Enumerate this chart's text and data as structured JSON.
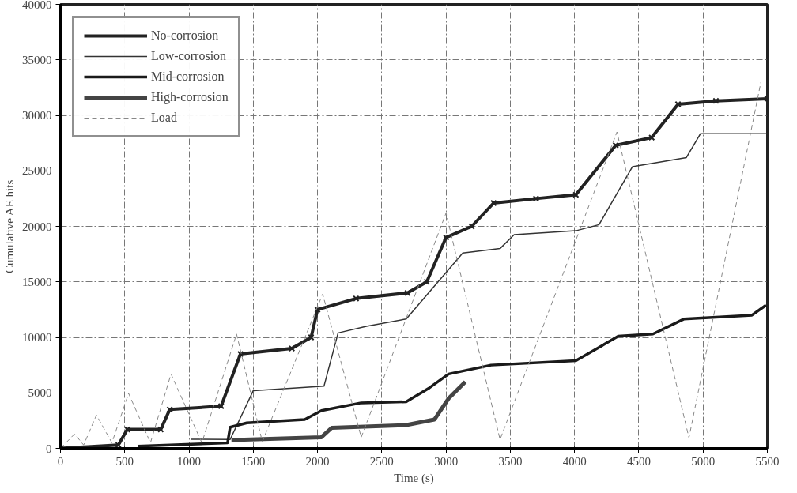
{
  "chart_data": {
    "type": "line",
    "xlabel": "Time (s)",
    "ylabel": "Cumulative AE hits",
    "xlim": [
      0,
      5500
    ],
    "ylim": [
      0,
      40000
    ],
    "xticks": [
      0,
      500,
      1000,
      1500,
      2000,
      2500,
      3000,
      3500,
      4000,
      4500,
      5000,
      5500
    ],
    "yticks": [
      0,
      5000,
      10000,
      15000,
      20000,
      25000,
      30000,
      35000,
      40000
    ],
    "grid": true,
    "legend": "top left",
    "series": [
      {
        "name": "No-corrosion",
        "color": "#222222",
        "marker": "cross",
        "line_style": "solid",
        "x": [
          0,
          450,
          520,
          780,
          850,
          1250,
          1400,
          1800,
          1950,
          2000,
          2300,
          2700,
          2850,
          3000,
          3200,
          3370,
          3700,
          4010,
          4320,
          4600,
          4805,
          5100,
          5500
        ],
        "values": [
          0,
          300,
          1700,
          1700,
          3500,
          3800,
          8500,
          9000,
          10000,
          12500,
          13500,
          14000,
          15000,
          19000,
          20000,
          22100,
          22500,
          22840,
          27300,
          28000,
          31000,
          31300,
          31500
        ]
      },
      {
        "name": "Low-corrosion",
        "color": "#333333",
        "marker": "none",
        "line_style": "solid",
        "x": [
          1018,
          1320,
          1500,
          2050,
          2160,
          2380,
          2690,
          3130,
          3420,
          3530,
          4010,
          4190,
          4450,
          4870,
          4980,
          5500
        ],
        "values": [
          820,
          800,
          5200,
          5600,
          10400,
          11000,
          11650,
          17600,
          18000,
          19250,
          19600,
          20150,
          25370,
          26200,
          28350,
          28350
        ]
      },
      {
        "name": "Mid-corrosion",
        "color": "#1a1a1a",
        "marker": "none",
        "line_style": "solid",
        "x": [
          600,
          1300,
          1320,
          1450,
          1900,
          2030,
          2340,
          2690,
          2870,
          3020,
          3350,
          4010,
          4340,
          4610,
          4850,
          5380,
          5490
        ],
        "values": [
          200,
          500,
          1900,
          2300,
          2600,
          3400,
          4100,
          4200,
          5450,
          6700,
          7500,
          7900,
          10100,
          10300,
          11650,
          12000,
          12900
        ]
      },
      {
        "name": "High-corrosion",
        "color": "#444444",
        "marker": "none",
        "line_style": "solid",
        "x": [
          1330,
          2030,
          2110,
          2690,
          2910,
          3020,
          3150
        ],
        "values": [
          750,
          1000,
          1850,
          2100,
          2600,
          4500,
          6000
        ]
      },
      {
        "name": "Load",
        "color": "#888888",
        "marker": "none",
        "line_style": "dashed",
        "x": [
          0,
          110,
          180,
          280,
          400,
          530,
          700,
          860,
          1100,
          1370,
          1570,
          2040,
          2340,
          3000,
          3420,
          4330,
          4890,
          5450
        ],
        "values": [
          0,
          1300,
          300,
          3000,
          500,
          4950,
          500,
          6700,
          500,
          10300,
          600,
          13900,
          1000,
          21200,
          800,
          28500,
          950,
          33000
        ]
      }
    ]
  }
}
